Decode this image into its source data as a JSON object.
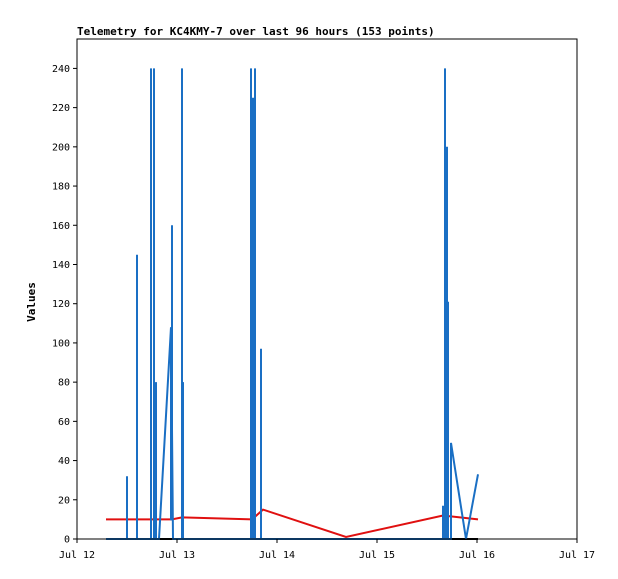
{
  "chart_data": {
    "type": "line",
    "title": "Telemetry for KC4KMY-7 over last 96 hours (153 points)",
    "xlabel": "",
    "ylabel": "Values",
    "x_unit": "days",
    "xlim": [
      12.0,
      17.0
    ],
    "ylim": [
      0,
      255
    ],
    "x_ticks": [
      {
        "value": 12,
        "label": "Jul 12"
      },
      {
        "value": 13,
        "label": "Jul 13"
      },
      {
        "value": 14,
        "label": "Jul 14"
      },
      {
        "value": 15,
        "label": "Jul 15"
      },
      {
        "value": 16,
        "label": "Jul 16"
      },
      {
        "value": 17,
        "label": "Jul 17"
      }
    ],
    "y_ticks": [
      0,
      20,
      40,
      60,
      80,
      100,
      120,
      140,
      160,
      180,
      200,
      220,
      240
    ],
    "grid": false,
    "legend": "none",
    "series": [
      {
        "color": "#000000",
        "points": [
          [
            12.29,
            0
          ],
          [
            14.69,
            0
          ],
          [
            16.01,
            0
          ]
        ]
      },
      {
        "color": "#e01010",
        "points": [
          [
            12.29,
            10
          ],
          [
            12.95,
            10
          ],
          [
            13.05,
            11
          ],
          [
            13.75,
            10
          ],
          [
            13.86,
            15
          ],
          [
            14.69,
            1
          ],
          [
            15.66,
            12
          ],
          [
            16.01,
            10
          ]
        ]
      },
      {
        "color": "#1a6fc4",
        "points": [
          [
            12.29,
            0
          ],
          [
            12.5,
            0
          ],
          [
            12.5,
            32
          ],
          [
            12.5,
            0
          ],
          [
            12.6,
            0
          ],
          [
            12.6,
            145
          ],
          [
            12.6,
            0
          ],
          [
            12.74,
            0
          ],
          [
            12.74,
            240
          ],
          [
            12.74,
            0
          ],
          [
            12.77,
            0
          ],
          [
            12.77,
            240
          ],
          [
            12.77,
            0
          ],
          [
            12.79,
            0
          ],
          [
            12.79,
            80
          ],
          [
            12.79,
            0
          ],
          [
            12.82,
            0
          ],
          [
            12.94,
            108
          ],
          [
            12.94,
            10
          ],
          [
            12.95,
            10
          ],
          [
            12.95,
            160
          ],
          [
            12.95,
            56
          ],
          [
            12.96,
            0
          ],
          [
            13.05,
            0
          ],
          [
            13.05,
            240
          ],
          [
            13.05,
            0
          ],
          [
            13.06,
            0
          ],
          [
            13.06,
            80
          ],
          [
            13.06,
            0
          ],
          [
            13.74,
            0
          ],
          [
            13.74,
            240
          ],
          [
            13.74,
            0
          ],
          [
            13.76,
            0
          ],
          [
            13.76,
            225
          ],
          [
            13.76,
            0
          ],
          [
            13.78,
            0
          ],
          [
            13.78,
            240
          ],
          [
            13.78,
            0
          ],
          [
            13.84,
            0
          ],
          [
            13.84,
            97
          ],
          [
            13.84,
            0
          ],
          [
            15.66,
            0
          ],
          [
            15.66,
            17
          ],
          [
            15.66,
            0
          ],
          [
            15.68,
            0
          ],
          [
            15.68,
            240
          ],
          [
            15.68,
            0
          ],
          [
            15.7,
            0
          ],
          [
            15.7,
            200
          ],
          [
            15.7,
            0
          ],
          [
            15.71,
            0
          ],
          [
            15.71,
            121
          ],
          [
            15.71,
            0
          ],
          [
            15.74,
            0
          ],
          [
            15.74,
            49
          ],
          [
            15.89,
            0
          ],
          [
            16.01,
            33
          ]
        ]
      }
    ]
  }
}
